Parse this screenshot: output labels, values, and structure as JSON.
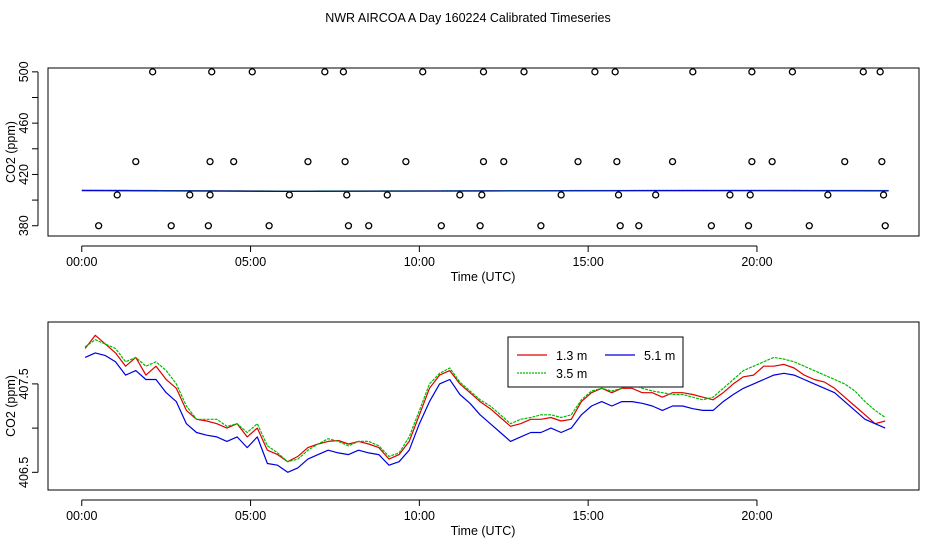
{
  "figure_title": "NWR AIRCOA A  Day 160224  Calibrated Timeseries",
  "chart_data": [
    {
      "type": "scatter",
      "panel": "top",
      "xlabel": "Time (UTC)",
      "ylabel": "CO2 (ppm)",
      "xlim": [
        -1.0,
        24.8
      ],
      "ylim": [
        372,
        503
      ],
      "x_ticks": [
        0,
        5,
        10,
        15,
        20
      ],
      "x_tick_labels": [
        "00:00",
        "05:00",
        "10:00",
        "15:00",
        "20:00"
      ],
      "y_ticks": [
        380,
        400,
        420,
        440,
        460,
        480,
        500
      ],
      "y_tick_labels": [
        "380",
        "",
        "420",
        "",
        "460",
        "",
        "500"
      ],
      "grid": false,
      "series": [
        {
          "name": "flag points",
          "color": "#000000",
          "marker": "open-circle",
          "points": [
            [
              2.1,
              500
            ],
            [
              3.85,
              500
            ],
            [
              5.05,
              500
            ],
            [
              7.2,
              500
            ],
            [
              7.75,
              500
            ],
            [
              10.1,
              500
            ],
            [
              11.9,
              500
            ],
            [
              13.1,
              500
            ],
            [
              15.2,
              500
            ],
            [
              15.8,
              500
            ],
            [
              18.1,
              500
            ],
            [
              19.85,
              500
            ],
            [
              21.05,
              500
            ],
            [
              23.15,
              500
            ],
            [
              23.65,
              500
            ],
            [
              1.6,
              430
            ],
            [
              3.8,
              430
            ],
            [
              4.5,
              430
            ],
            [
              6.7,
              430
            ],
            [
              7.8,
              430
            ],
            [
              9.6,
              430
            ],
            [
              11.9,
              430
            ],
            [
              12.5,
              430
            ],
            [
              14.7,
              430
            ],
            [
              15.85,
              430
            ],
            [
              17.5,
              430
            ],
            [
              19.85,
              430
            ],
            [
              20.45,
              430
            ],
            [
              22.6,
              430
            ],
            [
              23.7,
              430
            ],
            [
              1.05,
              404
            ],
            [
              3.2,
              404
            ],
            [
              3.8,
              404
            ],
            [
              6.15,
              404
            ],
            [
              7.85,
              404
            ],
            [
              9.05,
              404
            ],
            [
              11.2,
              404
            ],
            [
              11.85,
              404
            ],
            [
              14.2,
              404
            ],
            [
              15.9,
              404
            ],
            [
              17.0,
              404
            ],
            [
              19.2,
              404
            ],
            [
              19.8,
              404
            ],
            [
              22.1,
              404
            ],
            [
              23.75,
              404
            ],
            [
              0.5,
              380
            ],
            [
              2.65,
              380
            ],
            [
              3.75,
              380
            ],
            [
              5.55,
              380
            ],
            [
              7.9,
              380
            ],
            [
              8.5,
              380
            ],
            [
              10.65,
              380
            ],
            [
              11.8,
              380
            ],
            [
              13.6,
              380
            ],
            [
              15.95,
              380
            ],
            [
              16.5,
              380
            ],
            [
              18.65,
              380
            ],
            [
              19.75,
              380
            ],
            [
              21.55,
              380
            ],
            [
              23.8,
              380
            ]
          ]
        },
        {
          "name": "1.3 m",
          "color": "#e00000",
          "x": [
            0,
            6,
            12,
            18,
            23.9
          ],
          "y": [
            407.6,
            407.0,
            407.2,
            407.5,
            407.4
          ]
        },
        {
          "name": "3.5 m",
          "color": "#00bb00",
          "x": [
            0,
            6,
            12,
            18,
            23.9
          ],
          "y": [
            407.7,
            407.0,
            407.3,
            407.6,
            407.5
          ]
        },
        {
          "name": "5.1 m",
          "color": "#0000dd",
          "x": [
            0,
            6,
            12,
            18,
            23.9
          ],
          "y": [
            407.4,
            406.8,
            407.1,
            407.4,
            407.2
          ]
        }
      ]
    },
    {
      "type": "line",
      "panel": "bottom",
      "xlabel": "Time (UTC)",
      "ylabel": "CO2 (ppm)",
      "xlim": [
        -1.0,
        24.8
      ],
      "ylim": [
        406.3,
        408.2
      ],
      "x_ticks": [
        0,
        5,
        10,
        15,
        20
      ],
      "x_tick_labels": [
        "00:00",
        "05:00",
        "10:00",
        "15:00",
        "20:00"
      ],
      "y_ticks": [
        406.5,
        407.0,
        407.5
      ],
      "y_tick_labels": [
        "406.5",
        "",
        "407.5"
      ],
      "grid": false,
      "legend": {
        "position": "top-right",
        "entries": [
          "1.3 m",
          "3.5 m",
          "5.1 m"
        ]
      },
      "x": [
        0.1,
        0.4,
        0.7,
        1.0,
        1.3,
        1.6,
        1.9,
        2.2,
        2.5,
        2.8,
        3.1,
        3.4,
        3.7,
        4.0,
        4.3,
        4.6,
        4.9,
        5.2,
        5.5,
        5.8,
        6.1,
        6.4,
        6.7,
        7.0,
        7.3,
        7.6,
        7.9,
        8.2,
        8.5,
        8.8,
        9.1,
        9.4,
        9.7,
        10.0,
        10.3,
        10.6,
        10.9,
        11.2,
        11.5,
        11.8,
        12.1,
        12.4,
        12.7,
        13.0,
        13.3,
        13.6,
        13.9,
        14.2,
        14.5,
        14.8,
        15.1,
        15.4,
        15.7,
        16.0,
        16.3,
        16.6,
        16.9,
        17.2,
        17.5,
        17.8,
        18.1,
        18.4,
        18.7,
        19.0,
        19.3,
        19.6,
        19.9,
        20.2,
        20.5,
        20.8,
        21.1,
        21.4,
        21.7,
        22.0,
        22.3,
        22.6,
        22.9,
        23.2,
        23.5,
        23.8
      ],
      "series": [
        {
          "name": "1.3 m",
          "color": "#e00000",
          "values": [
            407.9,
            408.05,
            407.95,
            407.85,
            407.7,
            407.8,
            407.6,
            407.7,
            407.55,
            407.45,
            407.2,
            407.1,
            407.08,
            407.05,
            407.0,
            407.05,
            406.9,
            407.0,
            406.75,
            406.7,
            406.62,
            406.68,
            406.78,
            406.82,
            406.85,
            406.86,
            406.82,
            406.85,
            406.82,
            406.78,
            406.65,
            406.7,
            406.85,
            407.15,
            407.45,
            407.6,
            407.65,
            407.5,
            407.4,
            407.3,
            407.22,
            407.12,
            407.02,
            407.05,
            407.1,
            407.1,
            407.12,
            407.08,
            407.1,
            407.3,
            407.4,
            407.45,
            407.4,
            407.45,
            407.45,
            407.4,
            407.4,
            407.35,
            407.4,
            407.4,
            407.38,
            407.35,
            407.32,
            407.4,
            407.5,
            407.58,
            407.6,
            407.7,
            407.7,
            407.72,
            407.68,
            407.6,
            407.55,
            407.52,
            407.45,
            407.35,
            407.25,
            407.15,
            407.05,
            407.08
          ]
        },
        {
          "name": "3.5 m",
          "color": "#00bb00",
          "values": [
            407.92,
            408.0,
            407.95,
            407.9,
            407.75,
            407.8,
            407.7,
            407.75,
            407.65,
            407.5,
            407.25,
            407.1,
            407.1,
            407.1,
            407.02,
            407.05,
            406.95,
            407.05,
            406.8,
            406.72,
            406.62,
            406.65,
            406.75,
            406.82,
            406.88,
            406.85,
            406.8,
            406.85,
            406.85,
            406.8,
            406.68,
            406.72,
            406.9,
            407.2,
            407.5,
            407.62,
            407.68,
            407.52,
            407.42,
            407.32,
            407.25,
            407.15,
            407.05,
            407.1,
            407.12,
            407.15,
            407.15,
            407.12,
            407.15,
            407.32,
            407.42,
            407.45,
            407.42,
            407.45,
            407.5,
            407.45,
            407.42,
            407.4,
            407.38,
            407.38,
            407.35,
            407.32,
            407.35,
            407.45,
            407.55,
            407.65,
            407.7,
            407.75,
            407.8,
            407.78,
            407.75,
            407.7,
            407.65,
            407.6,
            407.55,
            407.5,
            407.42,
            407.3,
            407.2,
            407.12
          ]
        },
        {
          "name": "5.1 m",
          "color": "#0000dd",
          "values": [
            407.8,
            407.85,
            407.82,
            407.75,
            407.6,
            407.65,
            407.55,
            407.55,
            407.4,
            407.3,
            407.05,
            406.95,
            406.92,
            406.9,
            406.85,
            406.9,
            406.78,
            406.9,
            406.6,
            406.58,
            406.5,
            406.55,
            406.65,
            406.7,
            406.75,
            406.72,
            406.7,
            406.75,
            406.72,
            406.7,
            406.58,
            406.62,
            406.75,
            407.05,
            407.3,
            407.5,
            407.55,
            407.38,
            407.28,
            407.15,
            407.05,
            406.95,
            406.85,
            406.9,
            406.95,
            406.95,
            407.0,
            406.95,
            407.0,
            407.15,
            407.25,
            407.3,
            407.25,
            407.3,
            407.3,
            407.28,
            407.25,
            407.2,
            407.25,
            407.25,
            407.22,
            407.2,
            407.2,
            407.3,
            407.38,
            407.45,
            407.5,
            407.55,
            407.6,
            407.62,
            407.6,
            407.55,
            407.5,
            407.45,
            407.4,
            407.3,
            407.2,
            407.1,
            407.05,
            407.0
          ]
        }
      ]
    }
  ]
}
